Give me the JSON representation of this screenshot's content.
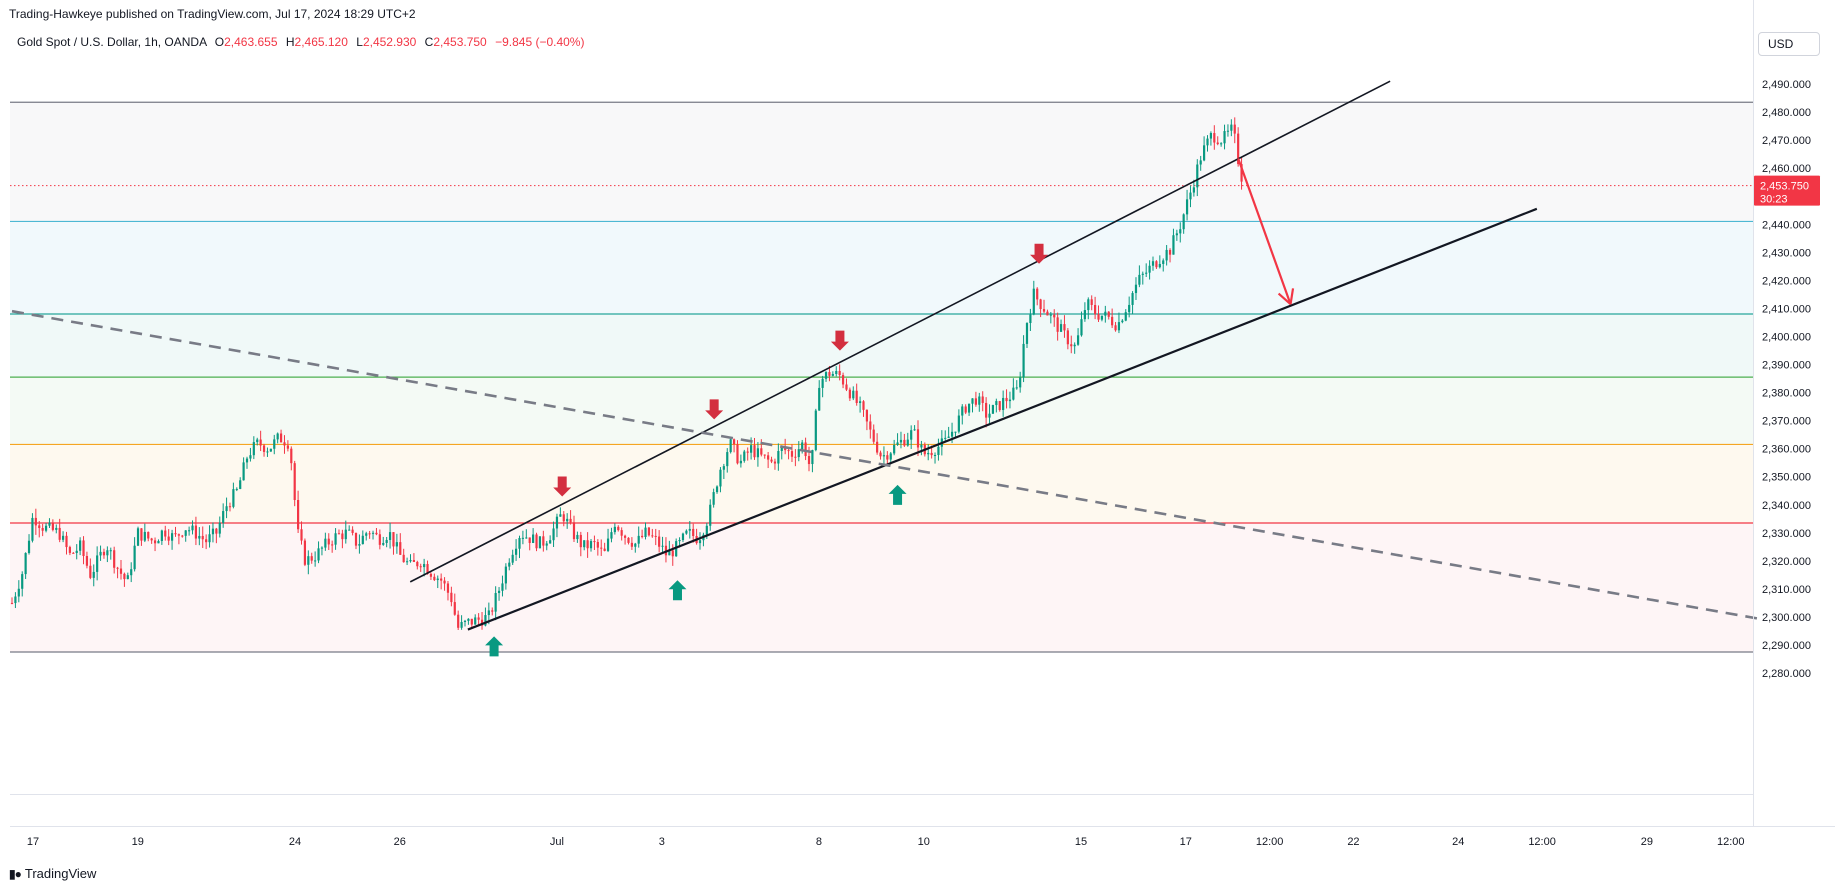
{
  "attribution": "Trading-Hawkeye published on TradingView.com, Jul 17, 2024 18:29 UTC+2",
  "legend": {
    "symbol": "Gold Spot / U.S. Dollar, 1h, OANDA",
    "o_label": "O",
    "o_value": "2,463.655",
    "h_label": "H",
    "h_value": "2,465.120",
    "l_label": "L",
    "l_value": "2,452.930",
    "c_label": "C",
    "c_value": "2,453.750",
    "change": "−9.845 (−0.40%)"
  },
  "currency": "USD",
  "price_tag": {
    "price": "2,453.750",
    "countdown": "30:23"
  },
  "footer": {
    "brand": "TradingView",
    "icon": "tradingview-logo-icon"
  },
  "colors": {
    "up": "#089981",
    "down": "#f23645",
    "price_line": "#f23645",
    "zone_line_1": "#4db8d3",
    "zone_line_2": "#26a69a",
    "zone_line_3": "#4caf50",
    "zone_line_4": "#f5a623",
    "zone_line_5": "#f23645"
  },
  "chart_data": {
    "type": "candlestick",
    "y_ticks": [
      "2,490.000",
      "2,480.000",
      "2,470.000",
      "2,460.000",
      "2,450.000",
      "2,440.000",
      "2,430.000",
      "2,420.000",
      "2,410.000",
      "2,400.000",
      "2,390.000",
      "2,380.000",
      "2,370.000",
      "2,360.000",
      "2,350.000",
      "2,340.000",
      "2,330.000",
      "2,320.000",
      "2,310.000",
      "2,300.000",
      "2,290.000",
      "2,280.000"
    ],
    "y_tick_values": [
      2490,
      2480,
      2470,
      2460,
      2450,
      2440,
      2430,
      2420,
      2410,
      2400,
      2390,
      2380,
      2370,
      2360,
      2350,
      2340,
      2330,
      2320,
      2310,
      2300,
      2290,
      2280
    ],
    "x_ticks": [
      "17",
      "19",
      "24",
      "26",
      "Jul",
      "3",
      "8",
      "10",
      "15",
      "17",
      "12:00",
      "22",
      "24",
      "12:00",
      "29",
      "12:00"
    ],
    "x_tick_index": [
      0.4,
      2.4,
      5.4,
      7.4,
      10.4,
      12.4,
      15.4,
      17.4,
      20.4,
      22.4,
      24.0,
      25.6,
      27.6,
      29.2,
      31.2,
      32.8
    ],
    "current_price": 2453.75,
    "horizontal_levels": [
      {
        "price": 2483.5,
        "color": "#787b86"
      },
      {
        "price": 2441.0,
        "color": "#4db8d3"
      },
      {
        "price": 2408.0,
        "color": "#26a69a"
      },
      {
        "price": 2385.5,
        "color": "#4caf50"
      },
      {
        "price": 2361.5,
        "color": "#f5a623"
      },
      {
        "price": 2333.5,
        "color": "#f23645"
      },
      {
        "price": 2287.5,
        "color": "#787b86"
      }
    ],
    "zones": [
      {
        "from": 2483.5,
        "to": 2441.0,
        "color": "rgba(120,123,134,0.05)"
      },
      {
        "from": 2441.0,
        "to": 2408.0,
        "color": "rgba(77,184,211,0.08)"
      },
      {
        "from": 2408.0,
        "to": 2385.5,
        "color": "rgba(38,166,154,0.07)"
      },
      {
        "from": 2385.5,
        "to": 2361.5,
        "color": "rgba(76,175,80,0.06)"
      },
      {
        "from": 2361.5,
        "to": 2333.5,
        "color": "rgba(245,166,35,0.07)"
      },
      {
        "from": 2333.5,
        "to": 2287.5,
        "color": "rgba(242,54,69,0.05)"
      }
    ],
    "trendlines": [
      {
        "x1": 7.6,
        "y1": 2312.5,
        "x2": 26.3,
        "y2": 2491.0,
        "style": "solid",
        "width": 1.6
      },
      {
        "x1": 8.7,
        "y1": 2295.5,
        "x2": 29.1,
        "y2": 2445.5,
        "style": "solid",
        "width": 2.2
      },
      {
        "x1": 0.0,
        "y1": 2409.0,
        "x2": 33.3,
        "y2": 2299.5,
        "style": "dashed",
        "width": 2.6
      }
    ],
    "projection_arrow": {
      "x1": 23.4,
      "y1": 2463.5,
      "x2": 24.4,
      "y2": 2411.5,
      "color": "#f23645"
    },
    "signal_arrows": [
      {
        "dir": "up",
        "x": 9.2,
        "price": 2289.5
      },
      {
        "dir": "down",
        "x": 10.5,
        "price": 2346.5
      },
      {
        "dir": "up",
        "x": 12.7,
        "price": 2309.5
      },
      {
        "dir": "down",
        "x": 13.4,
        "price": 2374.0
      },
      {
        "dir": "down",
        "x": 15.8,
        "price": 2398.5
      },
      {
        "dir": "up",
        "x": 16.9,
        "price": 2343.5
      },
      {
        "dir": "down",
        "x": 19.6,
        "price": 2429.5
      }
    ],
    "price_path": [
      [
        0.0,
        2305
      ],
      [
        0.2,
        2316
      ],
      [
        0.4,
        2336
      ],
      [
        0.6,
        2332
      ],
      [
        0.9,
        2330
      ],
      [
        1.1,
        2322
      ],
      [
        1.3,
        2325
      ],
      [
        1.5,
        2315
      ],
      [
        1.8,
        2326
      ],
      [
        2.0,
        2318
      ],
      [
        2.2,
        2312
      ],
      [
        2.4,
        2330
      ],
      [
        2.7,
        2327
      ],
      [
        2.9,
        2331
      ],
      [
        3.1,
        2328
      ],
      [
        3.3,
        2332
      ],
      [
        3.5,
        2330
      ],
      [
        3.7,
        2327
      ],
      [
        3.9,
        2330
      ],
      [
        4.1,
        2340
      ],
      [
        4.3,
        2345
      ],
      [
        4.5,
        2358
      ],
      [
        4.7,
        2362
      ],
      [
        4.9,
        2360
      ],
      [
        5.1,
        2364
      ],
      [
        5.3,
        2362
      ],
      [
        5.45,
        2330
      ],
      [
        5.6,
        2320
      ],
      [
        5.8,
        2322
      ],
      [
        6.0,
        2326
      ],
      [
        6.2,
        2329
      ],
      [
        6.4,
        2330
      ],
      [
        6.6,
        2326
      ],
      [
        6.8,
        2331
      ],
      [
        7.0,
        2328
      ],
      [
        7.2,
        2330
      ],
      [
        7.4,
        2322
      ],
      [
        7.6,
        2318
      ],
      [
        7.8,
        2320
      ],
      [
        8.0,
        2316
      ],
      [
        8.2,
        2313
      ],
      [
        8.4,
        2306
      ],
      [
        8.5,
        2296
      ],
      [
        8.7,
        2298
      ],
      [
        8.9,
        2299
      ],
      [
        9.1,
        2300
      ],
      [
        9.3,
        2310
      ],
      [
        9.5,
        2322
      ],
      [
        9.7,
        2330
      ],
      [
        9.9,
        2328
      ],
      [
        10.1,
        2326
      ],
      [
        10.3,
        2330
      ],
      [
        10.5,
        2337
      ],
      [
        10.7,
        2330
      ],
      [
        10.9,
        2325
      ],
      [
        11.1,
        2326
      ],
      [
        11.3,
        2322
      ],
      [
        11.5,
        2334
      ],
      [
        11.7,
        2329
      ],
      [
        11.9,
        2326
      ],
      [
        12.1,
        2330
      ],
      [
        12.3,
        2327
      ],
      [
        12.5,
        2322
      ],
      [
        12.7,
        2325
      ],
      [
        12.9,
        2330
      ],
      [
        13.1,
        2328
      ],
      [
        13.3,
        2336
      ],
      [
        13.5,
        2352
      ],
      [
        13.7,
        2362
      ],
      [
        13.9,
        2355
      ],
      [
        14.1,
        2360
      ],
      [
        14.3,
        2357
      ],
      [
        14.5,
        2355
      ],
      [
        14.7,
        2360
      ],
      [
        14.9,
        2358
      ],
      [
        15.1,
        2362
      ],
      [
        15.25,
        2352
      ],
      [
        15.4,
        2384
      ],
      [
        15.6,
        2387
      ],
      [
        15.8,
        2386
      ],
      [
        16.0,
        2380
      ],
      [
        16.2,
        2374
      ],
      [
        16.4,
        2365
      ],
      [
        16.6,
        2357
      ],
      [
        16.8,
        2360
      ],
      [
        17.0,
        2363
      ],
      [
        17.2,
        2366
      ],
      [
        17.4,
        2358
      ],
      [
        17.6,
        2360
      ],
      [
        17.8,
        2362
      ],
      [
        18.0,
        2368
      ],
      [
        18.2,
        2375
      ],
      [
        18.4,
        2378
      ],
      [
        18.6,
        2372
      ],
      [
        18.8,
        2375
      ],
      [
        19.0,
        2378
      ],
      [
        19.2,
        2381
      ],
      [
        19.35,
        2404
      ],
      [
        19.5,
        2415
      ],
      [
        19.7,
        2410
      ],
      [
        19.9,
        2405
      ],
      [
        20.1,
        2400
      ],
      [
        20.3,
        2396
      ],
      [
        20.5,
        2412
      ],
      [
        20.7,
        2408
      ],
      [
        20.9,
        2407
      ],
      [
        21.1,
        2404
      ],
      [
        21.3,
        2412
      ],
      [
        21.5,
        2420
      ],
      [
        21.7,
        2424
      ],
      [
        21.9,
        2428
      ],
      [
        22.1,
        2431
      ],
      [
        22.3,
        2440
      ],
      [
        22.5,
        2452
      ],
      [
        22.7,
        2465
      ],
      [
        22.9,
        2472
      ],
      [
        23.1,
        2470
      ],
      [
        23.3,
        2474
      ],
      [
        23.4,
        2463
      ],
      [
        23.5,
        2454
      ]
    ]
  }
}
